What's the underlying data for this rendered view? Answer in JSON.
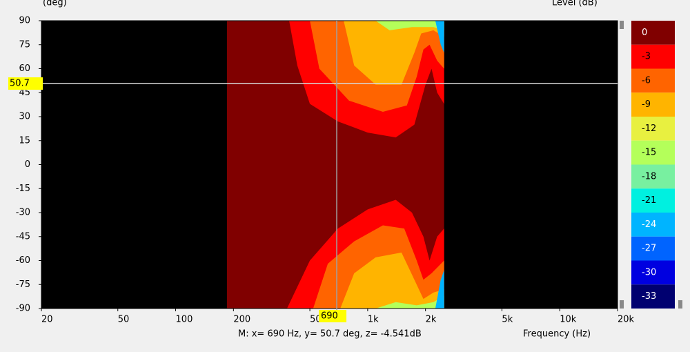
{
  "chart_data": {
    "type": "contour",
    "y_label": "(deg)",
    "x_label": "Frequency  (Hz)",
    "xlim": [
      20,
      20000
    ],
    "log_x": true,
    "xticks": [
      20,
      50,
      100,
      200,
      500,
      {
        "value": 1000,
        "label": "1k"
      },
      {
        "value": 2000,
        "label": "2k"
      },
      {
        "value": 5000,
        "label": "5k"
      },
      {
        "value": 10000,
        "label": "10k"
      },
      {
        "value": 20000,
        "label": "20k"
      }
    ],
    "ylim": [
      -90,
      90
    ],
    "yticks": [
      90,
      75,
      60,
      45,
      30,
      15,
      0,
      -15,
      -30,
      -45,
      -60,
      -75,
      -90
    ],
    "background": "#000000",
    "legend": {
      "title": "Level  (dB)",
      "levels": [
        0,
        -3,
        -6,
        -9,
        -12,
        -15,
        -18,
        -21,
        -24,
        -27,
        -30,
        -33
      ],
      "colors": [
        "#800000",
        "#ff0000",
        "#ff6400",
        "#ffb400",
        "#e8f040",
        "#b4ff5a",
        "#78f0a0",
        "#00f0e0",
        "#00b4ff",
        "#0064ff",
        "#0000e0",
        "#000070"
      ]
    },
    "contours": [
      {
        "level": 0,
        "x": [
          185,
          2500,
          2500,
          185
        ],
        "y": [
          90,
          90,
          -90,
          -90
        ]
      },
      {
        "level": -3,
        "x": [
          390,
          430,
          500,
          700,
          1000,
          1400,
          1750,
          2000,
          2150,
          2300,
          2500,
          2500
        ],
        "y": [
          90,
          62,
          38,
          27,
          20,
          17,
          25,
          50,
          60,
          45,
          38,
          90
        ]
      },
      {
        "level": -6,
        "x": [
          500,
          560,
          800,
          1200,
          1600,
          1800,
          1950,
          2100,
          2300,
          2500,
          2500
        ],
        "y": [
          90,
          60,
          40,
          33,
          37,
          55,
          72,
          75,
          65,
          60,
          90
        ]
      },
      {
        "level": -9,
        "x": [
          750,
          850,
          1100,
          1500,
          1750,
          1900,
          2200,
          2500,
          2500
        ],
        "y": [
          90,
          62,
          50,
          50,
          70,
          82,
          84,
          80,
          90
        ]
      },
      {
        "level": -15,
        "x": [
          1100,
          1300,
          1700,
          2200,
          2500,
          2500
        ],
        "y": [
          90,
          84,
          86,
          86,
          84,
          90
        ]
      },
      {
        "level": -24,
        "x": [
          2250,
          2400,
          2500,
          2500
        ],
        "y": [
          90,
          75,
          70,
          90
        ]
      },
      {
        "level": -3,
        "x": [
          380,
          500,
          700,
          1000,
          1400,
          1700,
          1950,
          2100,
          2300,
          2500,
          2500
        ],
        "y": [
          -90,
          -60,
          -40,
          -28,
          -22,
          -30,
          -45,
          -60,
          -45,
          -40,
          -90
        ]
      },
      {
        "level": -6,
        "x": [
          520,
          620,
          850,
          1200,
          1550,
          1800,
          1950,
          2150,
          2500,
          2500
        ],
        "y": [
          -90,
          -62,
          -48,
          -38,
          -40,
          -60,
          -72,
          -68,
          -60,
          -90
        ]
      },
      {
        "level": -9,
        "x": [
          720,
          850,
          1100,
          1500,
          1750,
          1950,
          2200,
          2500,
          2500
        ],
        "y": [
          -90,
          -68,
          -58,
          -55,
          -72,
          -84,
          -80,
          -78,
          -90
        ]
      },
      {
        "level": -15,
        "x": [
          1100,
          1400,
          1800,
          2200,
          2500,
          2500
        ],
        "y": [
          -90,
          -86,
          -88,
          -86,
          -82,
          -90
        ]
      },
      {
        "level": -24,
        "x": [
          2250,
          2400,
          2500,
          2500
        ],
        "y": [
          -90,
          -72,
          -66,
          -90
        ]
      }
    ],
    "cursor": {
      "x": 690,
      "y": 50.7,
      "readout": "M:  x= 690 Hz,  y= 50.7 deg, z= -4.541dB"
    }
  }
}
